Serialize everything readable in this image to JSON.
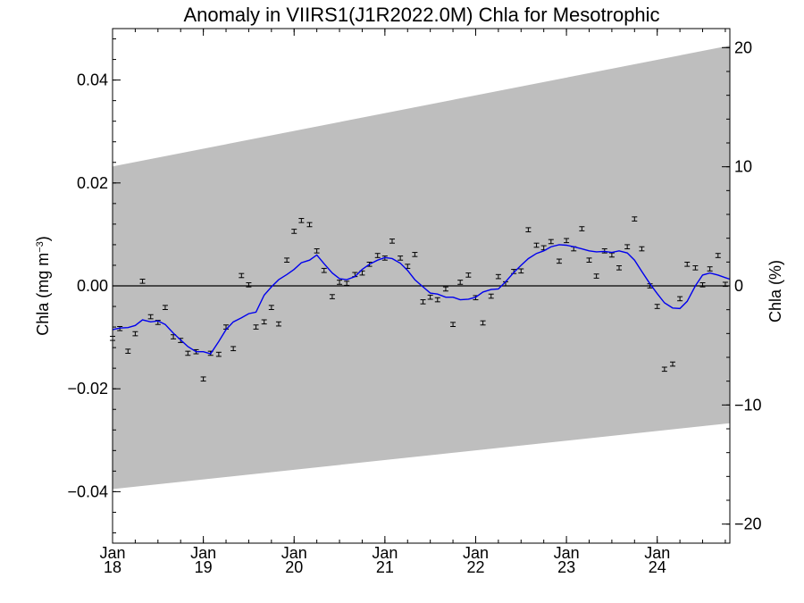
{
  "chart_data": {
    "type": "scatter",
    "title": "Anomaly in VIIRS1(J1R2022.0M) Chla for Mesotrophic",
    "ylabel_left": {
      "main": "Chla (mg m",
      "sup": "−3",
      "close": ")"
    },
    "ylabel_right": "Chla (%)",
    "x_range": [
      2018.0,
      2024.8
    ],
    "ylim_left": [
      -0.05,
      0.05
    ],
    "ylim_right": [
      -21.6,
      21.6
    ],
    "x_ticks": [
      {
        "x": 2018,
        "month": "Jan",
        "year": "18"
      },
      {
        "x": 2019,
        "month": "Jan",
        "year": "19"
      },
      {
        "x": 2020,
        "month": "Jan",
        "year": "20"
      },
      {
        "x": 2021,
        "month": "Jan",
        "year": "21"
      },
      {
        "x": 2022,
        "month": "Jan",
        "year": "22"
      },
      {
        "x": 2023,
        "month": "Jan",
        "year": "23"
      },
      {
        "x": 2024,
        "month": "Jan",
        "year": "24"
      }
    ],
    "y_ticks_left": [
      {
        "v": -0.04,
        "label": "−0.04"
      },
      {
        "v": -0.02,
        "label": "−0.02"
      },
      {
        "v": 0.0,
        "label": "0.00"
      },
      {
        "v": 0.02,
        "label": "0.02"
      },
      {
        "v": 0.04,
        "label": "0.04"
      }
    ],
    "y_ticks_right": [
      {
        "v": -20,
        "label": "−20"
      },
      {
        "v": -10,
        "label": "−10"
      },
      {
        "v": 0,
        "label": "0"
      },
      {
        "v": 10,
        "label": "10"
      },
      {
        "v": 20,
        "label": "20"
      }
    ],
    "shaded_band": {
      "color": "#bebebe",
      "x": [
        2018.0,
        2024.8
      ],
      "upper": [
        0.0232,
        0.0467
      ],
      "lower": [
        -0.0395,
        -0.0267
      ]
    },
    "zero_line": true,
    "grid": false,
    "monthly_anomaly": {
      "x": [
        2018.0,
        2018.08,
        2018.17,
        2018.25,
        2018.33,
        2018.42,
        2018.5,
        2018.58,
        2018.67,
        2018.75,
        2018.83,
        2018.92,
        2019.0,
        2019.08,
        2019.17,
        2019.25,
        2019.33,
        2019.42,
        2019.5,
        2019.58,
        2019.67,
        2019.75,
        2019.83,
        2019.92,
        2020.0,
        2020.08,
        2020.17,
        2020.25,
        2020.33,
        2020.42,
        2020.5,
        2020.58,
        2020.67,
        2020.75,
        2020.83,
        2020.92,
        2021.0,
        2021.08,
        2021.17,
        2021.25,
        2021.33,
        2021.42,
        2021.5,
        2021.58,
        2021.67,
        2021.75,
        2021.83,
        2021.92,
        2022.0,
        2022.08,
        2022.17,
        2022.25,
        2022.33,
        2022.42,
        2022.5,
        2022.58,
        2022.67,
        2022.75,
        2022.83,
        2022.92,
        2023.0,
        2023.08,
        2023.17,
        2023.25,
        2023.33,
        2023.42,
        2023.5,
        2023.58,
        2023.67,
        2023.75,
        2023.83,
        2023.92,
        2024.0,
        2024.08,
        2024.17,
        2024.25,
        2024.33,
        2024.42,
        2024.5,
        2024.58,
        2024.67,
        2024.75
      ],
      "y": [
        -0.0102,
        -0.0083,
        -0.0127,
        -0.0093,
        0.0009,
        -0.006,
        -0.0071,
        -0.0042,
        -0.0099,
        -0.0106,
        -0.0131,
        -0.0128,
        -0.0181,
        -0.0131,
        -0.0133,
        -0.008,
        -0.0122,
        0.002,
        0.0002,
        -0.008,
        -0.007,
        -0.0042,
        -0.0074,
        0.005,
        0.0106,
        0.0127,
        0.0119,
        0.0068,
        0.003,
        -0.0021,
        0.0007,
        0.0005,
        0.0022,
        0.0025,
        0.0042,
        0.0059,
        0.0054,
        0.0087,
        0.0054,
        0.0038,
        0.0061,
        -0.0031,
        -0.0022,
        -0.0027,
        -0.0006,
        -0.0075,
        0.0007,
        0.0021,
        -0.0023,
        -0.0072,
        -0.002,
        0.0018,
        0.0004,
        0.0028,
        0.0029,
        0.0109,
        0.0079,
        0.0074,
        0.0086,
        0.0048,
        0.0088,
        0.0072,
        0.0111,
        0.005,
        0.0019,
        0.0068,
        0.006,
        0.0035,
        0.0076,
        0.013,
        0.0072,
        0.0,
        -0.004,
        -0.0162,
        -0.0152,
        -0.0025,
        0.0042,
        0.0035,
        0.0002,
        0.0033,
        0.0059,
        0.0003
      ],
      "error": 0.0004
    },
    "running_mean": {
      "color": "#0000ee",
      "x": [
        2018.0,
        2018.08,
        2018.17,
        2018.25,
        2018.33,
        2018.42,
        2018.5,
        2018.58,
        2018.67,
        2018.75,
        2018.83,
        2018.92,
        2019.0,
        2019.08,
        2019.17,
        2019.25,
        2019.33,
        2019.42,
        2019.5,
        2019.58,
        2019.67,
        2019.75,
        2019.83,
        2019.92,
        2020.0,
        2020.08,
        2020.17,
        2020.25,
        2020.33,
        2020.42,
        2020.5,
        2020.58,
        2020.67,
        2020.75,
        2020.83,
        2020.92,
        2021.0,
        2021.08,
        2021.17,
        2021.25,
        2021.33,
        2021.42,
        2021.5,
        2021.58,
        2021.67,
        2021.75,
        2021.83,
        2021.92,
        2022.0,
        2022.08,
        2022.17,
        2022.25,
        2022.33,
        2022.42,
        2022.5,
        2022.58,
        2022.67,
        2022.75,
        2022.83,
        2022.92,
        2023.0,
        2023.08,
        2023.17,
        2023.25,
        2023.33,
        2023.42,
        2023.5,
        2023.58,
        2023.67,
        2023.75,
        2023.83,
        2023.92,
        2024.0,
        2024.08,
        2024.17,
        2024.25,
        2024.33,
        2024.42,
        2024.5,
        2024.58,
        2024.67,
        2024.75,
        2024.8
      ],
      "y": [
        -0.0085,
        -0.0082,
        -0.0081,
        -0.0077,
        -0.0066,
        -0.007,
        -0.0068,
        -0.0075,
        -0.0092,
        -0.0105,
        -0.0118,
        -0.0128,
        -0.0128,
        -0.0132,
        -0.0108,
        -0.0085,
        -0.007,
        -0.0062,
        -0.0054,
        -0.0051,
        -0.0018,
        -0.0002,
        0.0012,
        0.0022,
        0.0032,
        0.0045,
        0.005,
        0.006,
        0.0043,
        0.0025,
        0.0014,
        0.0012,
        0.0018,
        0.0032,
        0.0042,
        0.005,
        0.0055,
        0.0053,
        0.0044,
        0.003,
        0.0012,
        -0.0002,
        -0.0014,
        -0.0016,
        -0.0022,
        -0.0022,
        -0.0027,
        -0.0026,
        -0.0022,
        -0.0012,
        -0.0007,
        -0.0006,
        0.0008,
        0.0026,
        0.004,
        0.0053,
        0.0063,
        0.0068,
        0.0076,
        0.008,
        0.0079,
        0.0076,
        0.0072,
        0.0068,
        0.0066,
        0.0067,
        0.0065,
        0.0068,
        0.0064,
        0.005,
        0.0028,
        0.0004,
        -0.0015,
        -0.0033,
        -0.0043,
        -0.0044,
        -0.003,
        0.0,
        0.0021,
        0.0025,
        0.0021,
        0.0016,
        0.0013
      ]
    }
  }
}
